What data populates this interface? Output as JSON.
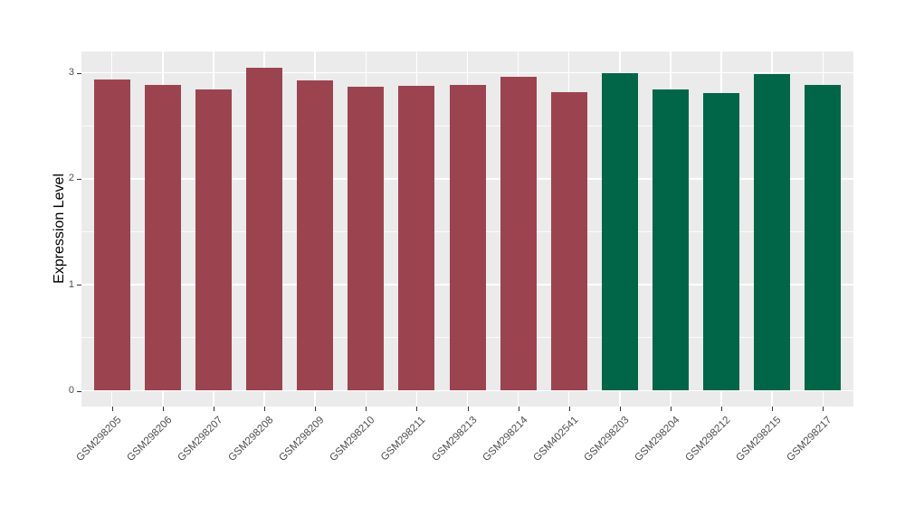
{
  "chart_data": {
    "type": "bar",
    "title": "",
    "xlabel": "",
    "ylabel": "Expression Level",
    "ylim": [
      0,
      3.2
    ],
    "yticks": [
      0,
      1,
      2,
      3
    ],
    "yticks_minor": [
      0.5,
      1.5,
      2.5
    ],
    "grid": true,
    "legend_position": "none",
    "categories": [
      "GSM298205",
      "GSM298206",
      "GSM298207",
      "GSM298208",
      "GSM298209",
      "GSM298210",
      "GSM298211",
      "GSM298213",
      "GSM298214",
      "GSM402541",
      "GSM298203",
      "GSM298204",
      "GSM298212",
      "GSM298215",
      "GSM298217"
    ],
    "values": [
      2.94,
      2.89,
      2.84,
      3.05,
      2.93,
      2.87,
      2.88,
      2.89,
      2.96,
      2.82,
      3.0,
      2.84,
      2.81,
      2.99,
      2.89
    ],
    "bar_groups": [
      "group1",
      "group1",
      "group1",
      "group1",
      "group1",
      "group1",
      "group1",
      "group1",
      "group1",
      "group1",
      "group2",
      "group2",
      "group2",
      "group2",
      "group2"
    ],
    "group_colors": {
      "group1": "#9B4450",
      "group2": "#006647"
    }
  },
  "style": {
    "panel_background": "#EBEBEB",
    "grid_color": "#FFFFFF",
    "axis_text_color": "#4D4D4D",
    "tick_mark_color": "#333333",
    "axis_title_color": "#000000"
  }
}
